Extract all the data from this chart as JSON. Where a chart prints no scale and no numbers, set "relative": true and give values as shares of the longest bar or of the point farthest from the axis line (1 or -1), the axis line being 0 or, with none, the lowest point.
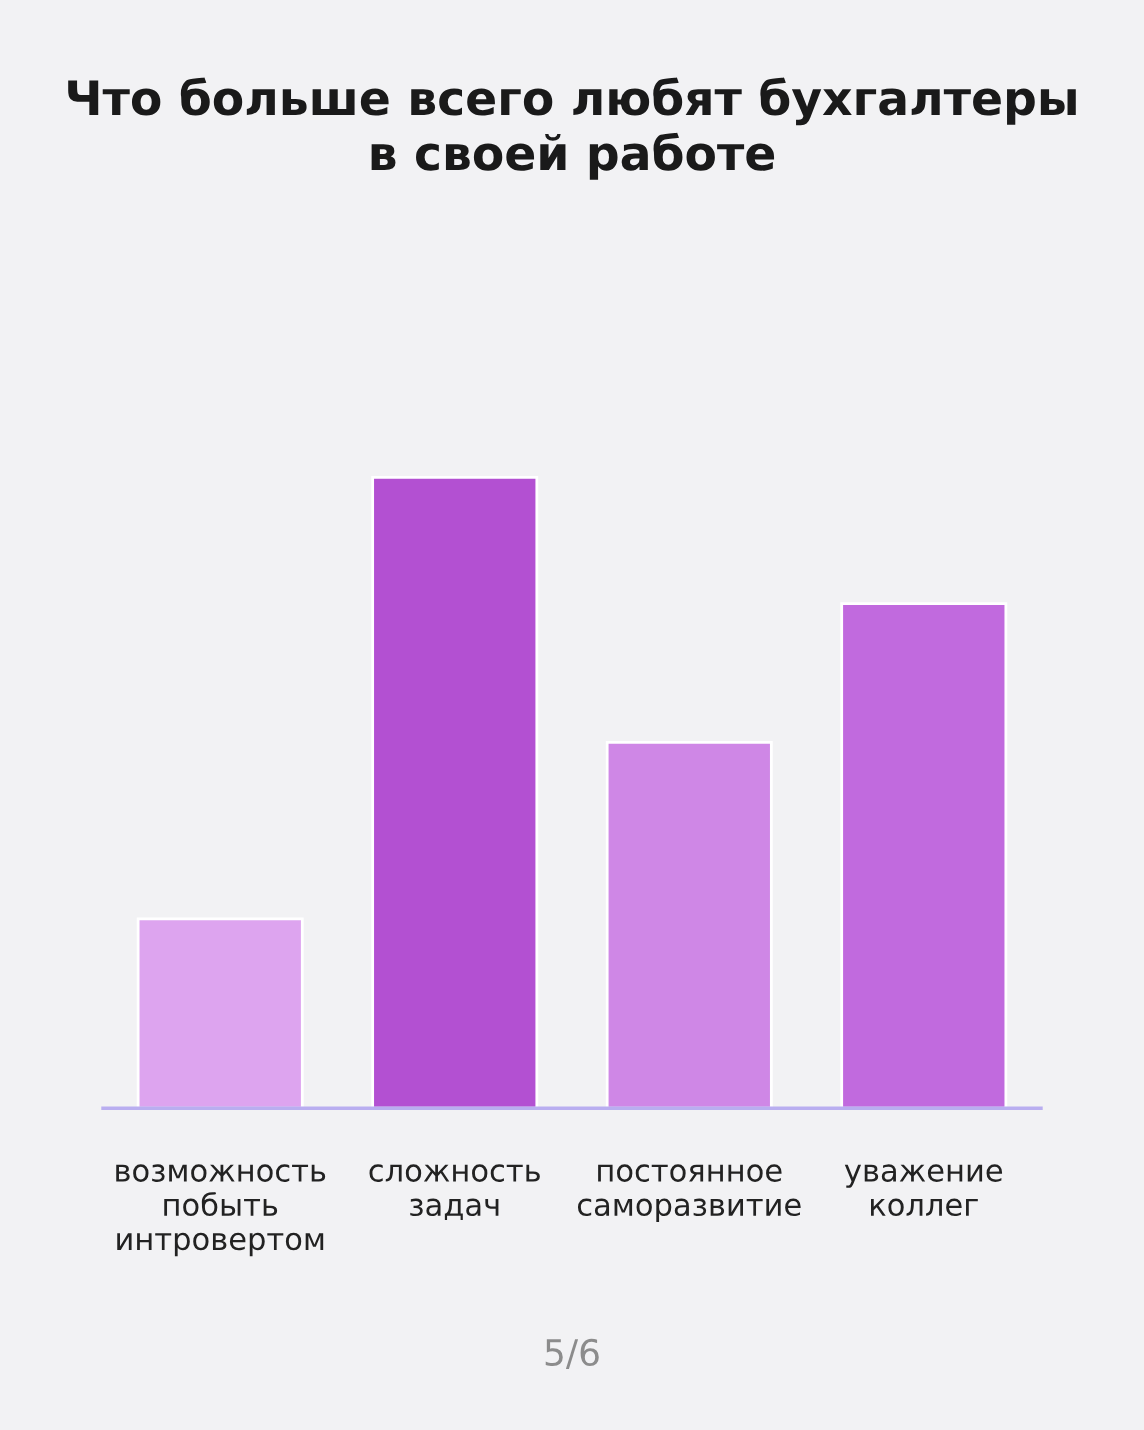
{
  "chart_data": {
    "type": "bar",
    "title": "Что больше всего любят бухгалтеры\nв своей работе",
    "categories": [
      "возможность\nпобыть\nинтровертом",
      "сложность\nзадач",
      "постоянное\nсаморазвитие",
      "уважение\nколлег"
    ],
    "values": [
      0.3,
      1,
      0.58,
      0.8
    ],
    "colors": [
      "#dda4ef",
      "#b350d2",
      "#cf87e6",
      "#c16ade"
    ],
    "relative": true,
    "annotations": [
      "5/6"
    ]
  }
}
